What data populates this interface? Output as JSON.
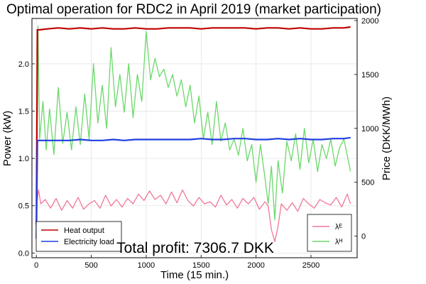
{
  "chart_data": {
    "type": "line",
    "title": "Optimal operation for RDC2 in April 2019 (market participation)",
    "xlabel": "Time (15 min.)",
    "ylabel_left": "Power (kW)",
    "ylabel_right": "Price (DKK/MWh)",
    "xlim": [
      -40,
      2920
    ],
    "ylim_left": [
      -0.05,
      2.48
    ],
    "ylim_right": [
      -200,
      2020
    ],
    "x_ticks": [
      0,
      500,
      1000,
      1500,
      2000,
      2500
    ],
    "y_ticks_left": [
      0.0,
      0.5,
      1.0,
      1.5,
      2.0
    ],
    "y_ticks_right": [
      0,
      500,
      1000,
      1500,
      2000
    ],
    "grid": true,
    "legend_left": {
      "placement": "bottom-left",
      "entries": [
        {
          "label": "Heat output",
          "color": "#c00000"
        },
        {
          "label": "Electricity load",
          "color": "#1f3fe0"
        }
      ]
    },
    "legend_right": {
      "placement": "bottom-right",
      "entries": [
        {
          "label": "λᴱ",
          "color": "#f07898"
        },
        {
          "label": "λᴴ",
          "color": "#6ad86a"
        }
      ]
    },
    "annotation": "Total profit: 7306.7 DKK",
    "series": [
      {
        "name": "Heat output",
        "axis": "left",
        "color": "#c00000",
        "x": [
          0,
          10,
          30,
          100,
          200,
          300,
          400,
          500,
          600,
          700,
          800,
          900,
          1000,
          1100,
          1200,
          1300,
          1400,
          1500,
          1600,
          1700,
          1800,
          1900,
          2000,
          2100,
          2200,
          2300,
          2400,
          2500,
          2600,
          2700,
          2800,
          2860
        ],
        "y": [
          0.3,
          2.36,
          2.36,
          2.37,
          2.38,
          2.37,
          2.38,
          2.37,
          2.38,
          2.37,
          2.37,
          2.38,
          2.37,
          2.37,
          2.38,
          2.38,
          2.38,
          2.37,
          2.38,
          2.38,
          2.38,
          2.38,
          2.37,
          2.38,
          2.38,
          2.37,
          2.38,
          2.37,
          2.37,
          2.38,
          2.38,
          2.39
        ]
      },
      {
        "name": "Electricity load",
        "axis": "left",
        "color": "#1f3fe0",
        "x": [
          0,
          10,
          30,
          100,
          200,
          300,
          400,
          500,
          600,
          700,
          800,
          900,
          1000,
          1100,
          1200,
          1300,
          1400,
          1500,
          1600,
          1700,
          1800,
          1900,
          2000,
          2100,
          2200,
          2300,
          2400,
          2500,
          2600,
          2700,
          2800,
          2860
        ],
        "y": [
          0.15,
          1.19,
          1.19,
          1.19,
          1.19,
          1.19,
          1.2,
          1.19,
          1.19,
          1.2,
          1.19,
          1.2,
          1.2,
          1.2,
          1.2,
          1.2,
          1.2,
          1.21,
          1.2,
          1.2,
          1.21,
          1.21,
          1.2,
          1.2,
          1.21,
          1.2,
          1.21,
          1.2,
          1.2,
          1.21,
          1.21,
          1.22
        ]
      },
      {
        "name": "λᴱ",
        "axis": "right",
        "color": "#f07898",
        "x": [
          0,
          20,
          40,
          80,
          130,
          180,
          230,
          280,
          330,
          380,
          430,
          480,
          530,
          580,
          630,
          680,
          730,
          780,
          830,
          880,
          930,
          980,
          1030,
          1080,
          1130,
          1180,
          1230,
          1280,
          1330,
          1380,
          1430,
          1480,
          1530,
          1580,
          1630,
          1680,
          1730,
          1780,
          1830,
          1880,
          1930,
          1980,
          2030,
          2080,
          2110,
          2140,
          2170,
          2200,
          2230,
          2280,
          2330,
          2380,
          2430,
          2480,
          2530,
          2580,
          2630,
          2680,
          2730,
          2780,
          2830,
          2860
        ],
        "y": [
          280,
          430,
          300,
          340,
          260,
          350,
          240,
          330,
          260,
          360,
          250,
          300,
          330,
          260,
          380,
          280,
          340,
          270,
          350,
          300,
          390,
          330,
          420,
          340,
          380,
          300,
          410,
          310,
          430,
          330,
          280,
          360,
          300,
          320,
          270,
          380,
          290,
          340,
          260,
          350,
          300,
          360,
          250,
          320,
          280,
          60,
          -50,
          90,
          300,
          240,
          310,
          230,
          350,
          300,
          260,
          340,
          310,
          290,
          360,
          270,
          390,
          300
        ]
      },
      {
        "name": "λᴴ",
        "axis": "right",
        "color": "#6ad86a",
        "x": [
          0,
          15,
          30,
          60,
          90,
          120,
          160,
          200,
          240,
          280,
          320,
          360,
          400,
          440,
          480,
          520,
          560,
          600,
          640,
          680,
          720,
          760,
          800,
          840,
          880,
          920,
          960,
          1000,
          1040,
          1080,
          1120,
          1160,
          1200,
          1240,
          1280,
          1320,
          1360,
          1400,
          1440,
          1480,
          1520,
          1560,
          1600,
          1640,
          1680,
          1720,
          1760,
          1800,
          1840,
          1880,
          1920,
          1960,
          2000,
          2040,
          2080,
          2110,
          2140,
          2170,
          2200,
          2240,
          2280,
          2320,
          2360,
          2400,
          2440,
          2480,
          2520,
          2560,
          2600,
          2640,
          2680,
          2720,
          2760,
          2800,
          2840,
          2860
        ],
        "y": [
          200,
          1950,
          900,
          1250,
          800,
          1180,
          760,
          1380,
          860,
          1150,
          800,
          1200,
          850,
          1320,
          900,
          1600,
          1050,
          1400,
          1000,
          1750,
          1200,
          1500,
          1150,
          1600,
          1100,
          1500,
          1250,
          1900,
          1450,
          1650,
          1480,
          1550,
          1380,
          1500,
          1300,
          1450,
          1200,
          1400,
          1050,
          1300,
          900,
          1150,
          850,
          1250,
          880,
          1050,
          800,
          900,
          750,
          1000,
          700,
          850,
          500,
          850,
          550,
          300,
          650,
          150,
          700,
          400,
          880,
          700,
          950,
          620,
          1000,
          680,
          900,
          600,
          850,
          720,
          900,
          650,
          820,
          900,
          700,
          600
        ]
      }
    ]
  }
}
